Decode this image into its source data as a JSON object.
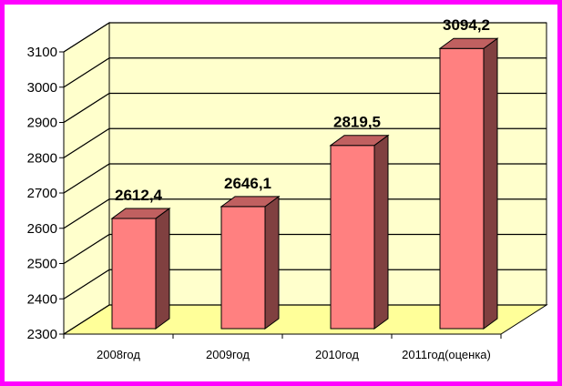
{
  "chart_data": {
    "type": "bar",
    "categories": [
      "2008год",
      "2009год",
      "2010год",
      "2011год(оценка)"
    ],
    "values": [
      2612.4,
      2646.1,
      2819.5,
      3094.2
    ],
    "data_labels": [
      "2612,4",
      "2646,1",
      "2819,5",
      "3094,2"
    ],
    "ylim": [
      2300,
      3100
    ],
    "yticks": [
      2300,
      2400,
      2500,
      2600,
      2700,
      2800,
      2900,
      3000,
      3100
    ],
    "ytick_labels": [
      "2300",
      "2400",
      "2500",
      "2600",
      "2700",
      "2800",
      "2900",
      "3000",
      "3100"
    ],
    "title": "",
    "xlabel": "",
    "ylabel": "",
    "grid": true,
    "three_d": true,
    "legend": false
  },
  "colors": {
    "frame_border": "#ff00ff",
    "back_wall": "#ffffcc",
    "floor": "#ffff99",
    "bar_front": "#ff8080",
    "bar_side": "#804040",
    "bar_top": "#c06060",
    "gridline": "#000000"
  }
}
